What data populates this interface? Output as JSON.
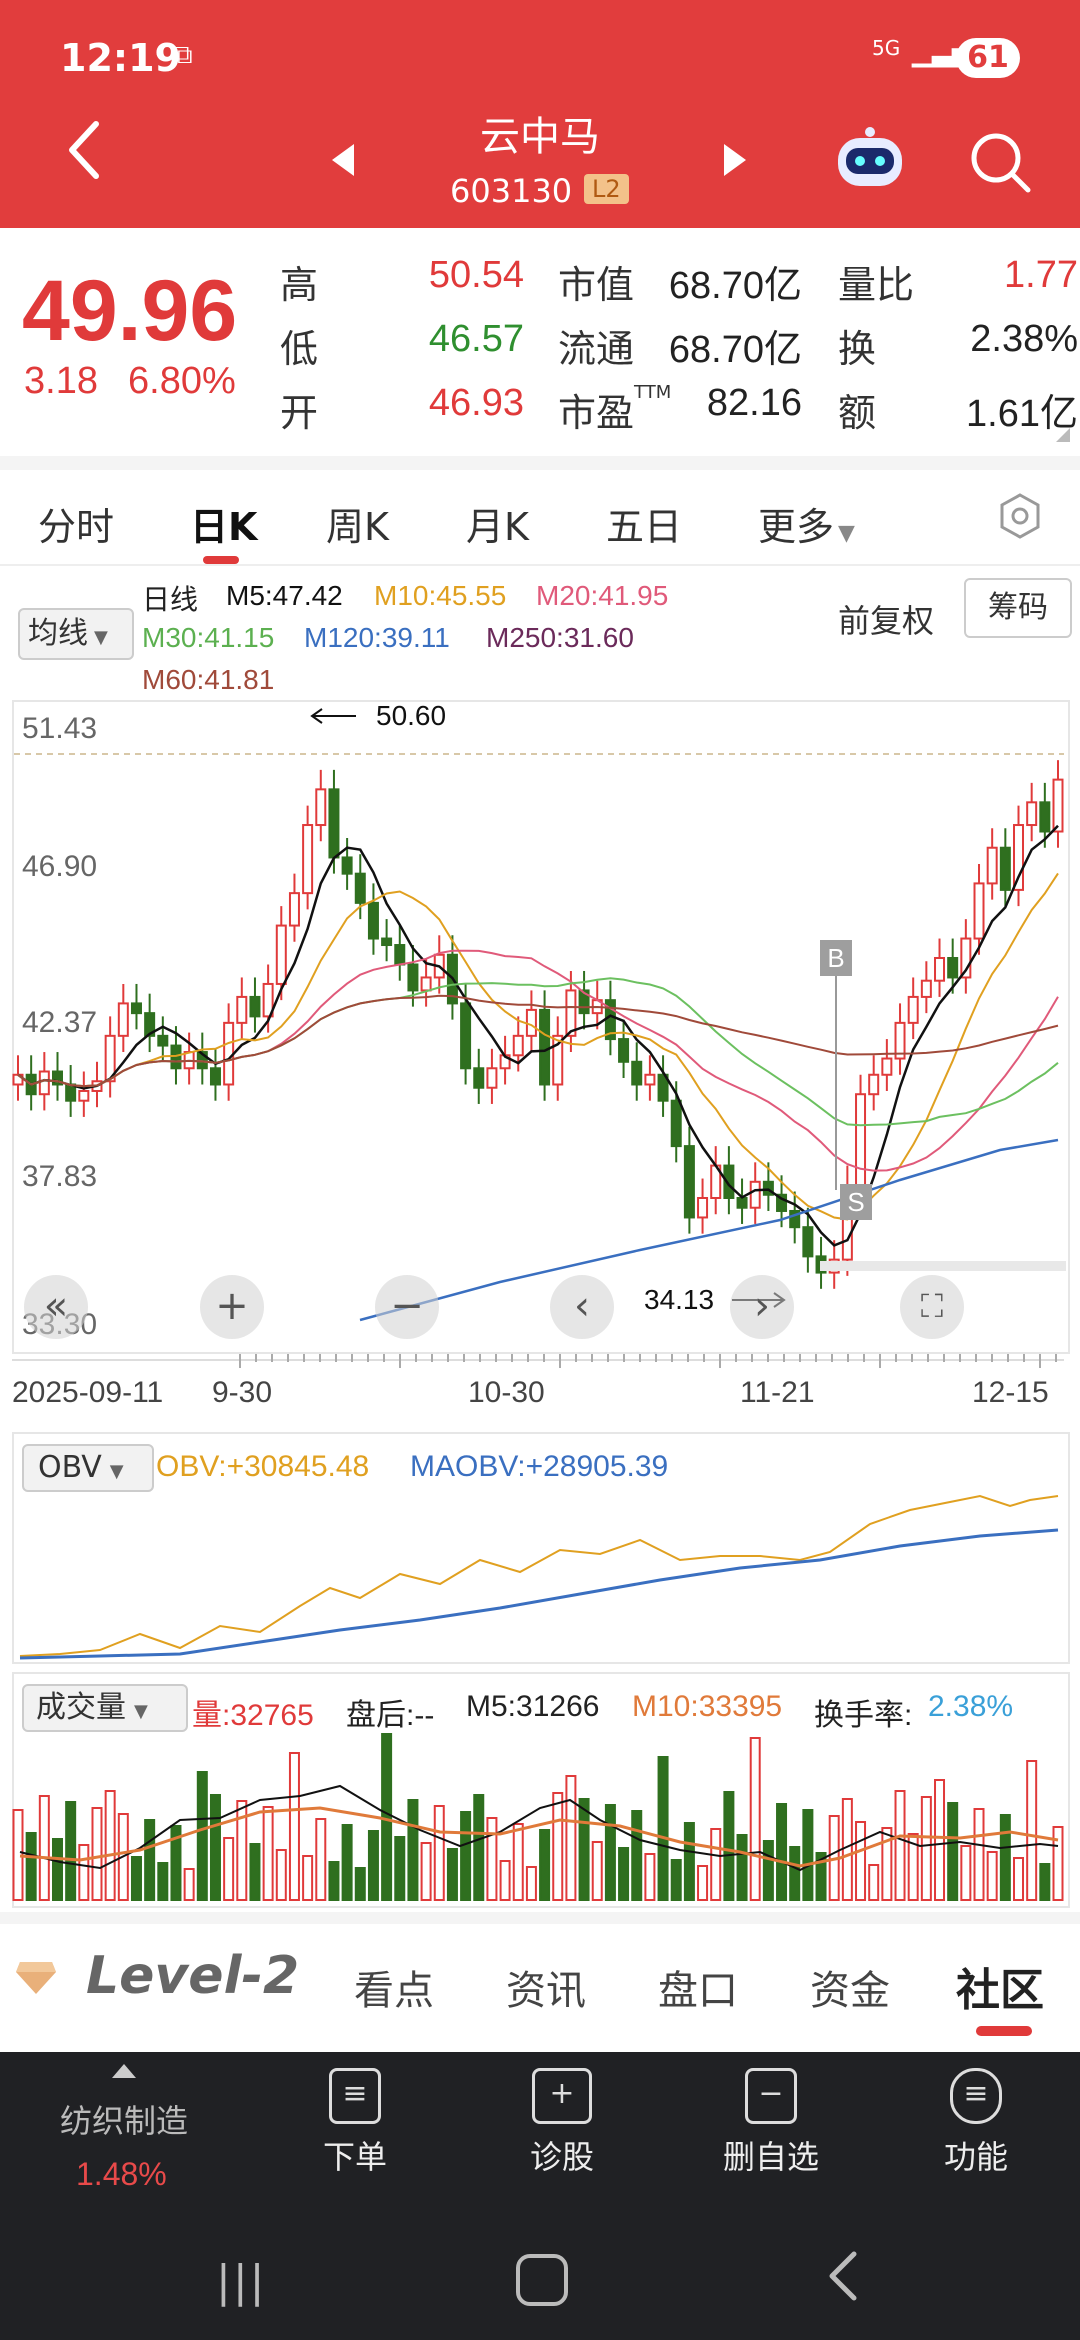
{
  "status": {
    "time": "12:19",
    "network": "5G",
    "battery": "61"
  },
  "header": {
    "title": "云中马",
    "code": "603130",
    "level_badge": "L2"
  },
  "quote": {
    "price": "49.96",
    "change": "3.18",
    "change_pct": "6.80%",
    "labels": {
      "high": "高",
      "low": "低",
      "open": "开",
      "mktcap": "市值",
      "float": "流通",
      "pe": "市盈TTM",
      "vol_ratio": "量比",
      "turnover": "换",
      "amount": "额"
    },
    "values": {
      "high": "50.54",
      "low": "46.57",
      "open": "46.93",
      "mktcap": "68.70亿",
      "float": "68.70亿",
      "pe": "82.16",
      "vol_ratio": "1.77",
      "turnover": "2.38%",
      "amount": "1.61亿"
    }
  },
  "tabs": [
    "分时",
    "日K",
    "周K",
    "月K",
    "五日",
    "更多"
  ],
  "active_tab": "日K",
  "ma_panel": {
    "selector": "均线",
    "label": "日线",
    "ma5": "M5:47.42",
    "ma10": "M10:45.55",
    "ma20": "M20:41.95",
    "ma30": "M30:41.15",
    "ma120": "M120:39.11",
    "ma250": "M250:31.60",
    "ma60": "M60:41.81",
    "adjust": "前复权",
    "chip_button": "筹码"
  },
  "kline": {
    "y_ticks": [
      "51.43",
      "46.90",
      "42.37",
      "37.83",
      "33.30"
    ],
    "x_ticks": [
      "2025-09-11",
      "9-30",
      "10-30",
      "11-21",
      "12-15"
    ],
    "high_mark": "50.60",
    "low_mark": "34.13",
    "buy_marker": "B",
    "sell_marker": "S"
  },
  "obv": {
    "selector": "OBV",
    "obv": "OBV:+30845.48",
    "maobv": "MAOBV:+28905.39"
  },
  "volume": {
    "selector": "成交量",
    "vol": "量:32765",
    "after_hours": "盘后:--",
    "m5": "M5:31266",
    "m10": "M10:33395",
    "turnover_label": "换手率:",
    "turnover_value": "2.38%"
  },
  "bottom_tabs": [
    "Level-2",
    "看点",
    "资讯",
    "盘口",
    "资金",
    "社区"
  ],
  "bottom_bar": {
    "sector": "纺织制造",
    "sector_pct": "1.48%",
    "items": [
      "下单",
      "诊股",
      "删自选",
      "功能"
    ]
  },
  "colors": {
    "brand": "#e13d3d",
    "up": "#e03a3a",
    "down": "#2f6f1f",
    "ma5": "#111111",
    "ma10": "#e0a020",
    "ma20": "#e05a7a",
    "ma30": "#6cc060",
    "ma120": "#3a6fc0",
    "ma250": "#6b2a5a",
    "ma60": "#a04a3a"
  }
}
